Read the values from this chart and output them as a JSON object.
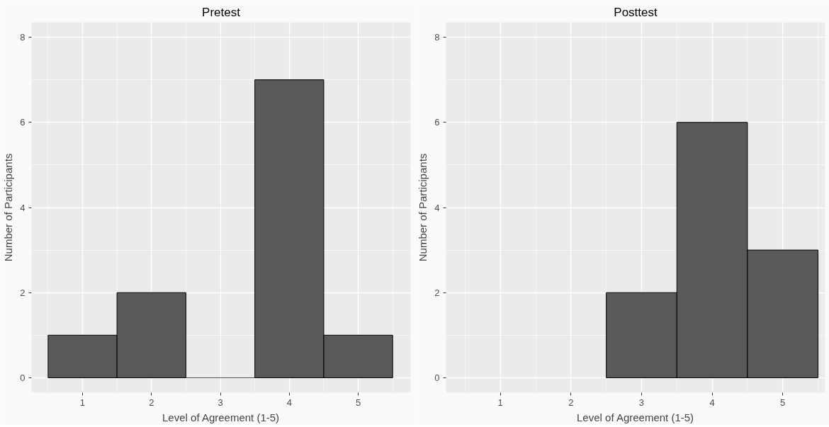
{
  "chart_data": [
    {
      "type": "histogram",
      "title": "Pretest",
      "xlabel": "Level of Agreement (1-5)",
      "ylabel": "Number of Participants",
      "bins": [
        0.5,
        1.5,
        2.5,
        3.5,
        4.5,
        5.5
      ],
      "values": [
        1,
        2,
        0,
        7,
        1
      ],
      "color": "#595959",
      "xlim": [
        0.26,
        5.76
      ],
      "ylim": [
        -0.35,
        8.35
      ],
      "xticks": [
        1,
        2,
        3,
        4,
        5
      ],
      "yticks": [
        0,
        2,
        4,
        6,
        8
      ],
      "grid": true
    },
    {
      "type": "histogram",
      "title": "Posttest",
      "xlabel": "Level of Agreement (1-5)",
      "ylabel": "Number of Participants",
      "bins": [
        2.5,
        3.5,
        4.5,
        5.5
      ],
      "values": [
        2,
        6,
        3
      ],
      "color": "#595959",
      "xlim": [
        0.23,
        5.6
      ],
      "ylim": [
        -0.35,
        8.35
      ],
      "xticks": [
        1,
        2,
        3,
        4,
        5
      ],
      "yticks": [
        0,
        2,
        4,
        6,
        8
      ],
      "grid": true
    }
  ]
}
